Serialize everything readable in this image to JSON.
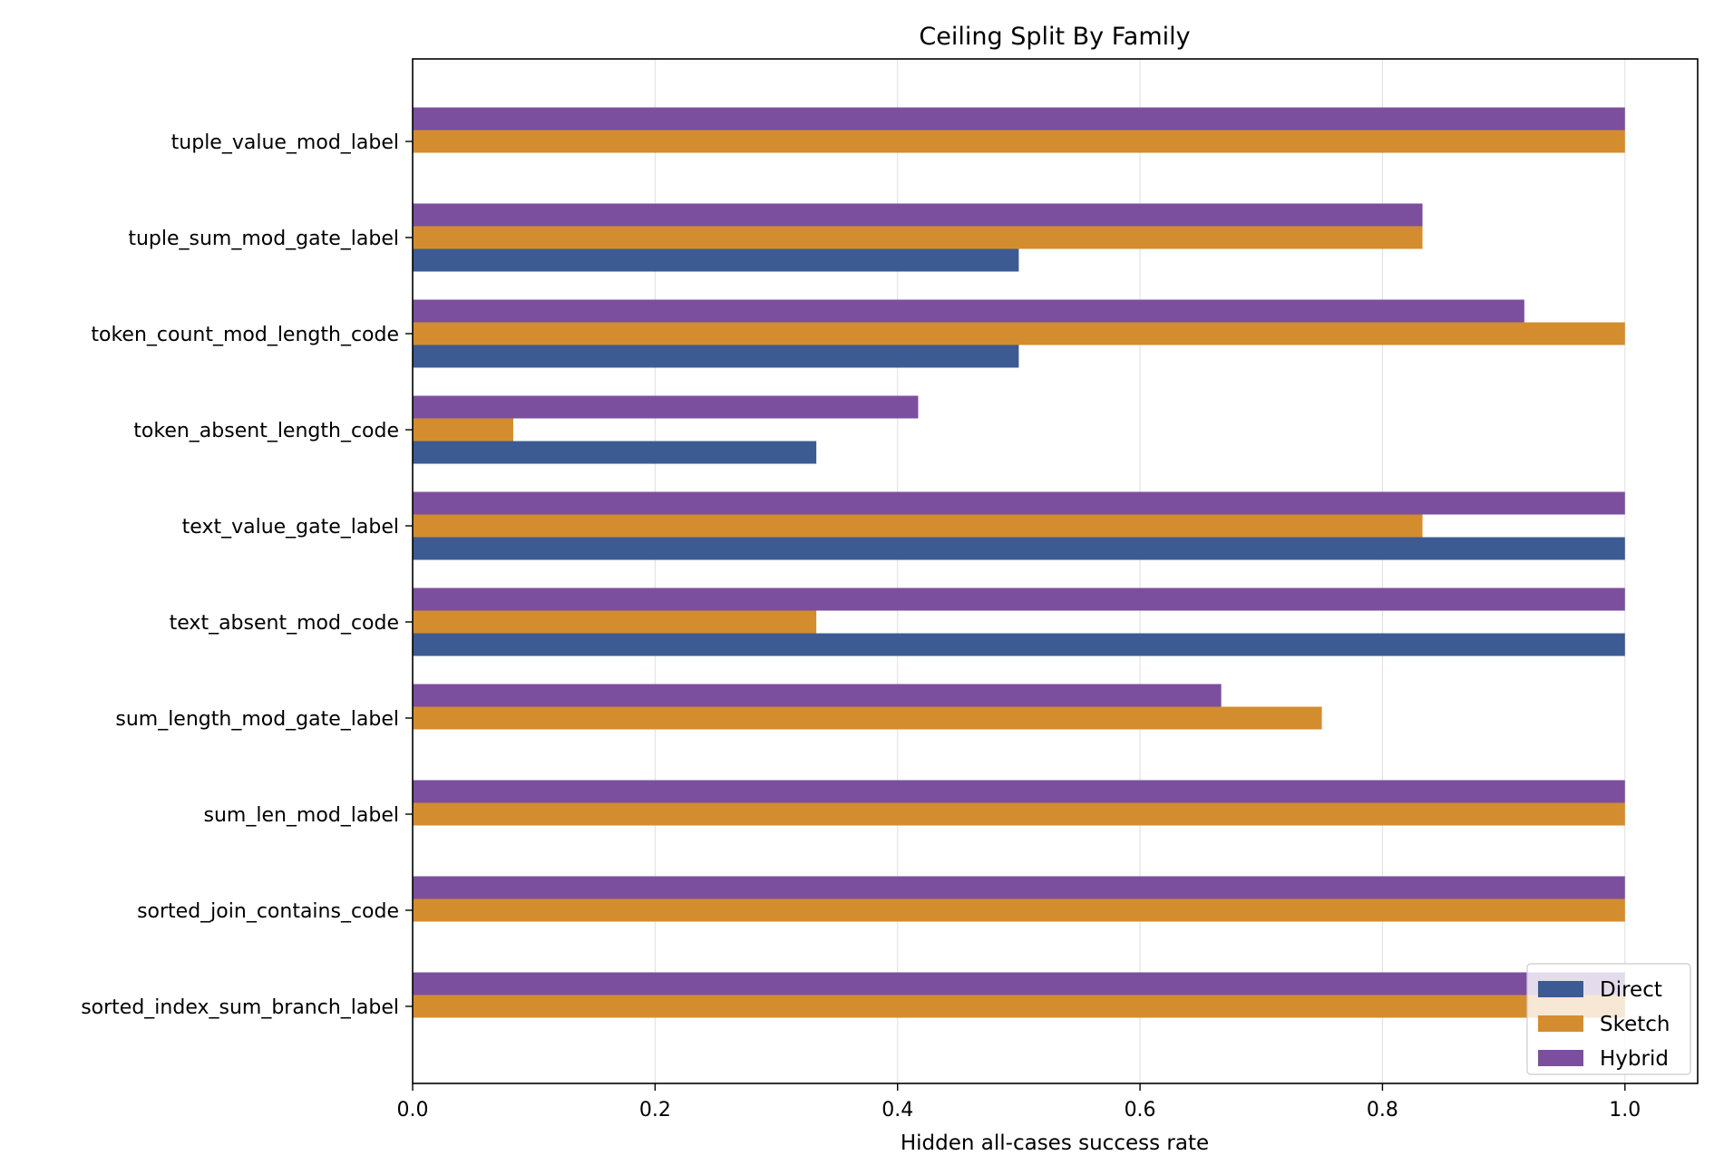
{
  "chart_data": {
    "type": "bar",
    "orientation": "horizontal",
    "title": "Ceiling Split By Family",
    "xlabel": "Hidden all-cases success rate",
    "ylabel": "",
    "xlim": [
      0.0,
      1.06
    ],
    "xticks": [
      "0.0",
      "0.2",
      "0.4",
      "0.6",
      "0.8",
      "1.0"
    ],
    "grid": "vertical",
    "legend_position": "bottom-right",
    "categories": [
      "tuple_value_mod_label",
      "tuple_sum_mod_gate_label",
      "token_count_mod_length_code",
      "token_absent_length_code",
      "text_value_gate_label",
      "text_absent_mod_code",
      "sum_length_mod_gate_label",
      "sum_len_mod_label",
      "sorted_join_contains_code",
      "sorted_index_sum_branch_label"
    ],
    "series": [
      {
        "name": "Direct",
        "color": "#3b5b92",
        "values": [
          0.0,
          0.5,
          0.5,
          0.333,
          1.0,
          1.0,
          0.0,
          0.0,
          0.0,
          0.0
        ]
      },
      {
        "name": "Sketch",
        "color": "#d38d2f",
        "values": [
          1.0,
          0.833,
          1.0,
          0.083,
          0.833,
          0.333,
          0.75,
          1.0,
          1.0,
          1.0
        ]
      },
      {
        "name": "Hybrid",
        "color": "#7b4f9e",
        "values": [
          1.0,
          0.833,
          0.917,
          0.417,
          1.0,
          1.0,
          0.667,
          1.0,
          1.0,
          1.0
        ]
      }
    ]
  }
}
